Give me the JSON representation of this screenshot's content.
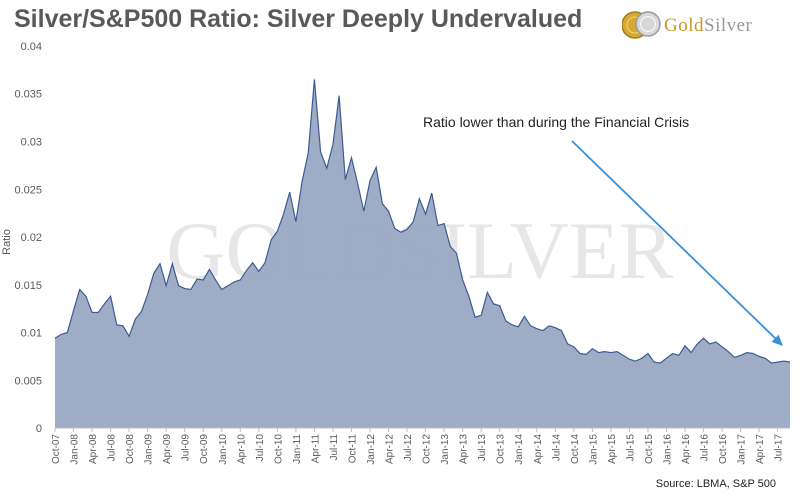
{
  "header": {
    "title": "Silver/S&P500 Ratio: Silver Deeply Undervalued"
  },
  "logo": {
    "text_gold": "Gold",
    "text_silver": "Silver",
    "watermark": "GOLDSILVER"
  },
  "source": "Source: LBMA, S&P 500",
  "colors": {
    "area_fill": "#9aa8c2",
    "area_line": "#3c5b94",
    "arrow": "#3a8fd6",
    "axis_text": "#595959"
  },
  "chart_data": {
    "type": "area",
    "title": "Silver/S&P500 Ratio: Silver Deeply Undervalued",
    "xlabel": "",
    "ylabel": "Ratio",
    "ylim": [
      0,
      0.04
    ],
    "yticks": [
      "0",
      "0.005",
      "0.01",
      "0.015",
      "0.02",
      "0.025",
      "0.03",
      "0.035",
      "0.04"
    ],
    "xtick_labels": [
      "Oct-07",
      "Jan-08",
      "Apr-08",
      "Jul-08",
      "Oct-08",
      "Jan-09",
      "Apr-09",
      "Jul-09",
      "Oct-09",
      "Jan-10",
      "Apr-10",
      "Jul-10",
      "Oct-10",
      "Jan-11",
      "Apr-11",
      "Jul-11",
      "Oct-11",
      "Jan-12",
      "Apr-12",
      "Jul-12",
      "Oct-12",
      "Jan-13",
      "Apr-13",
      "Jul-13",
      "Oct-13",
      "Jan-14",
      "Apr-14",
      "Jul-14",
      "Oct-14",
      "Jan-15",
      "Apr-15",
      "Jul-15",
      "Oct-15",
      "Jan-16",
      "Apr-16",
      "Jul-16",
      "Oct-16",
      "Jan-17",
      "Apr-17",
      "Jul-17"
    ],
    "months_per_tick": 3,
    "series": [
      {
        "name": "Silver/S&P500 Ratio",
        "start": "Oct-07",
        "values": [
          0.0094,
          0.0098,
          0.01,
          0.0123,
          0.0145,
          0.0138,
          0.0121,
          0.0121,
          0.013,
          0.0138,
          0.0108,
          0.0107,
          0.0096,
          0.0114,
          0.0122,
          0.014,
          0.0162,
          0.0172,
          0.0149,
          0.0172,
          0.0149,
          0.0146,
          0.0145,
          0.0156,
          0.0155,
          0.0166,
          0.0155,
          0.0145,
          0.0149,
          0.0153,
          0.0155,
          0.0165,
          0.0173,
          0.0164,
          0.0173,
          0.0197,
          0.0206,
          0.0224,
          0.0247,
          0.0216,
          0.0258,
          0.0288,
          0.0365,
          0.0289,
          0.0272,
          0.0297,
          0.0348,
          0.026,
          0.0283,
          0.0256,
          0.0227,
          0.0259,
          0.0273,
          0.0235,
          0.0227,
          0.0209,
          0.0205,
          0.0208,
          0.0216,
          0.024,
          0.0224,
          0.0246,
          0.0212,
          0.0214,
          0.019,
          0.0183,
          0.0155,
          0.0138,
          0.0116,
          0.0118,
          0.0142,
          0.013,
          0.0128,
          0.0112,
          0.0108,
          0.0106,
          0.0117,
          0.0107,
          0.0104,
          0.0102,
          0.0107,
          0.0105,
          0.0102,
          0.0088,
          0.0085,
          0.0078,
          0.0077,
          0.0083,
          0.0079,
          0.008,
          0.0079,
          0.008,
          0.0076,
          0.0072,
          0.007,
          0.0073,
          0.0078,
          0.0069,
          0.0068,
          0.0073,
          0.0078,
          0.0076,
          0.0086,
          0.0079,
          0.0088,
          0.0094,
          0.0088,
          0.009,
          0.0085,
          0.008,
          0.0074,
          0.0076,
          0.0079,
          0.0078,
          0.0075,
          0.0073,
          0.0068,
          0.0069,
          0.007,
          0.0069
        ]
      }
    ],
    "annotations": [
      {
        "text": "Ratio lower than during the Financial Crisis",
        "arrow_to_month": "Sep-17",
        "arrow_to_value": 0.0085
      }
    ],
    "grid": false,
    "legend": "none"
  }
}
